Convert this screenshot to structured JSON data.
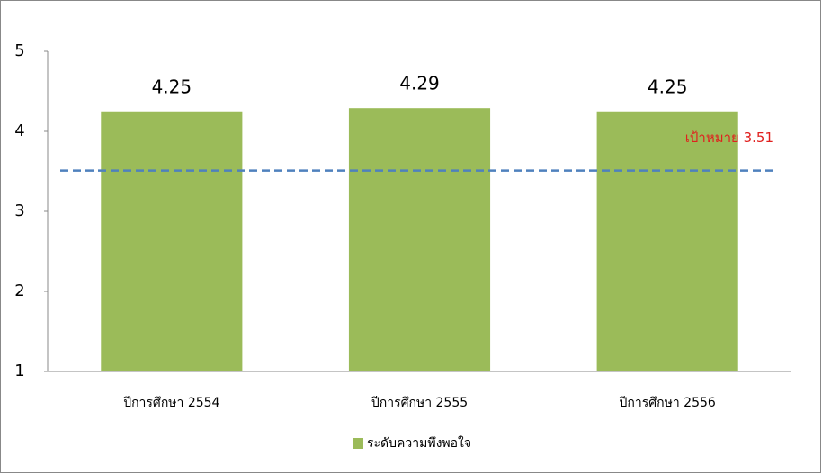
{
  "chart_data": {
    "type": "bar",
    "categories": [
      "ปีการศึกษา 2554",
      "ปีการศึกษา 2555",
      "ปีการศึกษา 2556"
    ],
    "series": [
      {
        "name": "ระดับความพึงพอใจ",
        "color": "#9bbb59",
        "values": [
          4.25,
          4.29,
          4.25
        ]
      }
    ],
    "ylim": [
      1,
      5
    ],
    "yticks": [
      1,
      2,
      3,
      4,
      5
    ],
    "target": {
      "value": 3.51,
      "label": "เป้าหมาย 3.51",
      "color": "#4f81bd",
      "label_color": "#e0201e"
    },
    "legend": "bottom"
  }
}
